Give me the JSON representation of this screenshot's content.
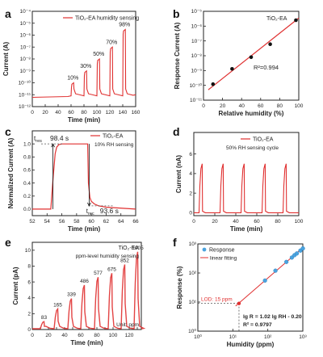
{
  "chart_data": [
    {
      "panel": "a",
      "type": "line",
      "legend": "TiO₂-EA humidity sensing",
      "xlabel": "Time (min)",
      "ylabel": "Current (A)",
      "xlim": [
        0,
        160
      ],
      "ylim": [
        1e-12,
        0.0001
      ],
      "y_scale": "log",
      "color": "#e03030",
      "xticks": [
        0,
        20,
        40,
        60,
        80,
        100,
        120,
        140,
        160
      ],
      "xtick_labels": [
        "0",
        "20",
        "40",
        "60",
        "80",
        "100",
        "120",
        "140",
        "160"
      ],
      "yticks": [
        1e-12,
        1e-11,
        1e-10,
        1e-09,
        1e-08,
        1e-07,
        1e-06,
        1e-05,
        0.0001
      ],
      "ytick_labels": [
        "10⁻¹²",
        "10⁻¹¹",
        "10⁻¹⁰",
        "10⁻⁹",
        "10⁻⁸",
        "10⁻⁷",
        "10⁻⁶",
        "10⁻⁵",
        "10⁻⁴"
      ],
      "baseline": 1e-11,
      "pulses": [
        {
          "start": 60,
          "end": 64,
          "peak": 1e-10,
          "label": "10%"
        },
        {
          "start": 80,
          "end": 84,
          "peak": 1e-09,
          "label": "30%"
        },
        {
          "start": 100,
          "end": 104,
          "peak": 1e-08,
          "label": "50%"
        },
        {
          "start": 120,
          "end": 124,
          "peak": 1e-07,
          "label": "70%"
        },
        {
          "start": 140,
          "end": 144,
          "peak": 3e-06,
          "label": "98%"
        }
      ]
    },
    {
      "panel": "b",
      "type": "scatter",
      "legend": "TiO₂-EA",
      "xlabel": "Relative humidity (%)",
      "ylabel": "Response Current (A)",
      "xlim": [
        0,
        100
      ],
      "ylim": [
        1e-11,
        1e-05
      ],
      "y_scale": "log",
      "x": [
        10,
        30,
        50,
        70,
        97
      ],
      "y": [
        1.2e-10,
        1.3e-09,
        8e-09,
        6e-08,
        2.5e-06
      ],
      "fit_x": [
        5,
        100
      ],
      "fit_y": [
        5e-11,
        3.5e-06
      ],
      "annotation": "R²=0.994",
      "xticks": [
        0,
        20,
        40,
        60,
        80,
        100
      ],
      "xtick_labels": [
        "0",
        "20",
        "40",
        "60",
        "80",
        "100"
      ],
      "yticks": [
        1e-11,
        1e-10,
        1e-09,
        1e-08,
        1e-07,
        1e-06,
        1e-05
      ],
      "ytick_labels": [
        "10⁻¹¹",
        "10⁻¹⁰",
        "10⁻⁹",
        "10⁻⁸",
        "10⁻⁷",
        "10⁻⁶",
        "10⁻⁵"
      ],
      "color": "#e03030"
    },
    {
      "panel": "c",
      "type": "line",
      "legend": "TiO₂-EA",
      "subtitle": "10% RH sensing",
      "xlabel": "Time (min)",
      "ylabel": "Normalized Current (A)",
      "xlim": [
        52,
        66
      ],
      "ylim": [
        -0.1,
        1.2
      ],
      "x": [
        52,
        54.5,
        54.8,
        55.1,
        55.3,
        55.6,
        56,
        57,
        59.5,
        59.6,
        59.8,
        60,
        60.4,
        61,
        62,
        66
      ],
      "y": [
        0,
        0,
        0.45,
        0.85,
        0.95,
        0.99,
        1.0,
        1.0,
        1.0,
        0.4,
        0.18,
        0.12,
        0.08,
        0.05,
        0.03,
        0.0
      ],
      "t_res_label": "t",
      "t_res_sub": "res",
      "t_res_value": "98.4 s",
      "t_rec_label": "t",
      "t_rec_sub": "rec",
      "t_rec_value": "93.6 s",
      "xticks": [
        52,
        54,
        56,
        58,
        60,
        62,
        64,
        66
      ],
      "xtick_labels": [
        "52",
        "54",
        "56",
        "58",
        "60",
        "62",
        "64",
        "66"
      ],
      "yticks": [
        0,
        0.2,
        0.4,
        0.6,
        0.8,
        1.0
      ],
      "ytick_labels": [
        "0.0",
        "0.2",
        "0.4",
        "0.6",
        "0.8",
        "1.0"
      ],
      "color": "#e03030"
    },
    {
      "panel": "d",
      "type": "line",
      "legend": "TiO₂-EA",
      "subtitle": "50% RH sensing cycle",
      "xlabel": "Time (min)",
      "ylabel": "Current (nA)",
      "xlim": [
        0,
        100
      ],
      "ylim": [
        -0.3,
        8.2
      ],
      "pulse_starts": [
        5,
        25,
        45,
        65,
        85
      ],
      "pulse_peak": 5.0,
      "xticks": [
        0,
        20,
        40,
        60,
        80,
        100
      ],
      "xtick_labels": [
        "0",
        "20",
        "40",
        "60",
        "80",
        "100"
      ],
      "yticks": [
        0,
        2,
        4,
        6
      ],
      "ytick_labels": [
        "0",
        "2",
        "4",
        "6"
      ],
      "color": "#e03030"
    },
    {
      "panel": "e",
      "type": "line",
      "legend": "TiO₂-EA",
      "subtitle": "ppm-level humidity sensing",
      "unit_note": "Unit: ppm",
      "xlabel": "Time (min)",
      "ylabel": "Current (pA)",
      "xlim": [
        0,
        135
      ],
      "ylim": [
        0,
        11
      ],
      "pulses": [
        {
          "start": 10,
          "peak": 1.0,
          "label": "83"
        },
        {
          "start": 27,
          "peak": 2.6,
          "label": "165"
        },
        {
          "start": 44,
          "peak": 3.9,
          "label": "339"
        },
        {
          "start": 60,
          "peak": 5.6,
          "label": "486"
        },
        {
          "start": 77,
          "peak": 6.6,
          "label": "577"
        },
        {
          "start": 94,
          "peak": 7.1,
          "label": "675"
        },
        {
          "start": 110,
          "peak": 8.2,
          "label": "852"
        },
        {
          "start": 126,
          "peak": 9.8,
          "label": "1005"
        }
      ],
      "xticks": [
        0,
        10,
        20,
        30,
        40,
        50,
        60,
        70,
        80,
        90,
        100,
        110,
        120,
        130
      ],
      "xtick_labels": [
        "0",
        "",
        "20",
        "",
        "40",
        "",
        "60",
        "",
        "80",
        "",
        "100",
        "",
        "120",
        ""
      ],
      "yticks": [
        0,
        2,
        4,
        6,
        8,
        10
      ],
      "ytick_labels": [
        "0",
        "2",
        "4",
        "6",
        "8",
        "10"
      ],
      "color": "#e03030"
    },
    {
      "panel": "f",
      "type": "scatter",
      "legend_points": "Response",
      "legend_line": "linear fitting",
      "xlabel": "Humidity (ppm)",
      "ylabel": "Response (%)",
      "xlim": [
        1,
        1000
      ],
      "ylim": [
        1,
        1000
      ],
      "x_scale": "log",
      "y_scale": "log",
      "x": [
        83,
        165,
        339,
        486,
        577,
        675,
        852,
        1005
      ],
      "y": [
        55,
        120,
        240,
        340,
        410,
        470,
        590,
        700
      ],
      "fit_x": [
        12,
        1000
      ],
      "fit_y": [
        7.3,
        740
      ],
      "lod_label": "LOD: 15 ppm",
      "lod_x": 15,
      "lod_y": 9,
      "equation": "lg R = 1.02 lg RH - 0.20",
      "r2": "R² = 0.9797",
      "xticks": [
        1,
        10,
        100,
        1000
      ],
      "xtick_labels": [
        "10⁰",
        "10¹",
        "10²",
        "10³"
      ],
      "yticks": [
        1,
        10,
        100,
        1000
      ],
      "ytick_labels": [
        "10⁰",
        "10¹",
        "10²",
        "10³"
      ],
      "points_color": "#4aa3df",
      "line_color": "#e03030"
    }
  ],
  "panel_labels": [
    "a",
    "b",
    "c",
    "d",
    "e",
    "f"
  ]
}
